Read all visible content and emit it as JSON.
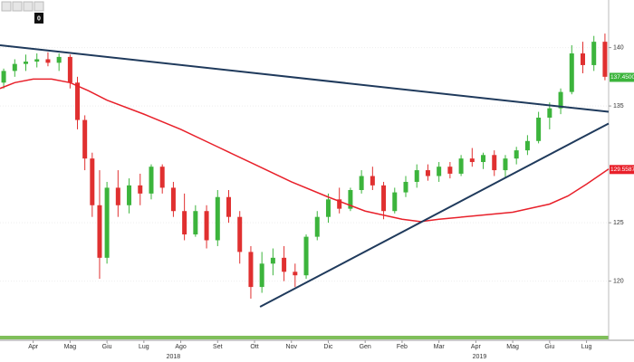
{
  "toolbar": {
    "badge": "0"
  },
  "chart_data": {
    "type": "candlestick",
    "xlim": [
      -0.9,
      15.6
    ],
    "ylim": [
      115.4,
      143.3
    ],
    "xticks": [
      {
        "value": 0,
        "label": "Apr"
      },
      {
        "value": 1,
        "label": "Mag"
      },
      {
        "value": 2,
        "label": "Giu"
      },
      {
        "value": 3,
        "label": "Lug"
      },
      {
        "value": 4,
        "label": "Ago"
      },
      {
        "value": 5,
        "label": "Set"
      },
      {
        "value": 6,
        "label": "Ott"
      },
      {
        "value": 7,
        "label": "Nov"
      },
      {
        "value": 8,
        "label": "Dic"
      },
      {
        "value": 9,
        "label": "Gen"
      },
      {
        "value": 10,
        "label": "Feb"
      },
      {
        "value": 11,
        "label": "Mar"
      },
      {
        "value": 12,
        "label": "Apr"
      },
      {
        "value": 13,
        "label": "Mag"
      },
      {
        "value": 14,
        "label": "Giu"
      },
      {
        "value": 15,
        "label": "Lug"
      }
    ],
    "years": [
      {
        "value": 3.8,
        "label": "2018"
      },
      {
        "value": 12.1,
        "label": "2019"
      }
    ],
    "yticks": [
      120,
      125,
      135,
      140
    ],
    "up_color": "#3cb43c",
    "down_color": "#e03030",
    "x": [
      -0.8,
      -0.5,
      -0.2,
      0.1,
      0.4,
      0.7,
      1.0,
      1.2,
      1.4,
      1.6,
      1.8,
      2.0,
      2.3,
      2.6,
      2.9,
      3.2,
      3.5,
      3.8,
      4.1,
      4.4,
      4.7,
      5.0,
      5.3,
      5.6,
      5.9,
      6.2,
      6.5,
      6.8,
      7.1,
      7.4,
      7.7,
      8.0,
      8.3,
      8.6,
      8.9,
      9.2,
      9.5,
      9.8,
      10.1,
      10.4,
      10.7,
      11.0,
      11.3,
      11.6,
      11.9,
      12.2,
      12.5,
      12.8,
      13.1,
      13.4,
      13.7,
      14.0,
      14.3,
      14.6,
      14.9,
      15.2,
      15.5
    ],
    "open": [
      137,
      138,
      138.6,
      138.8,
      139,
      138.7,
      139.2,
      137,
      133.8,
      130.5,
      126.5,
      122,
      128,
      126.5,
      128.2,
      127.5,
      129.8,
      128,
      126,
      124,
      126,
      123.5,
      127.2,
      125.5,
      122.5,
      119.5,
      121.5,
      122,
      120.8,
      120.5,
      123.8,
      125.5,
      127,
      126.2,
      127.8,
      129,
      128.2,
      126,
      127.6,
      128.5,
      129.5,
      129,
      129.8,
      129.2,
      130.5,
      130.2,
      130.8,
      129.5,
      130.5,
      131.2,
      132,
      134,
      134.8,
      136.2,
      139.5,
      138.5,
      140.5
    ],
    "high": [
      138.2,
      139,
      139.4,
      139.5,
      139.6,
      139.5,
      139.4,
      137.5,
      134.2,
      131,
      129.5,
      128.5,
      129.5,
      128.8,
      129.2,
      130,
      130,
      128.5,
      127.5,
      126.5,
      126.5,
      127.8,
      127.8,
      126,
      123,
      122.5,
      122.8,
      123,
      121.5,
      124,
      126,
      127.5,
      128,
      128,
      129.5,
      129.8,
      128.5,
      128,
      129,
      130,
      130,
      130.2,
      130.2,
      130.8,
      131.4,
      131,
      131.2,
      130.8,
      131.5,
      132.5,
      134.5,
      135.3,
      136.5,
      140.2,
      140.5,
      141,
      141.2
    ],
    "low": [
      136.5,
      137.5,
      138,
      138.3,
      138.4,
      138,
      136.5,
      133,
      129.5,
      125.5,
      120.2,
      121.5,
      125.5,
      125.8,
      126.5,
      127,
      127.5,
      125.5,
      123.5,
      123.8,
      122.8,
      123,
      125,
      121.5,
      118.5,
      119,
      120.5,
      120,
      119.5,
      120.2,
      123.5,
      125,
      125.8,
      126,
      127.5,
      127.8,
      125.3,
      125.8,
      127.2,
      128,
      128.6,
      128.5,
      128.8,
      129,
      129.8,
      129.6,
      129,
      128.8,
      130,
      130.8,
      131.8,
      133,
      134.3,
      136,
      137.8,
      138,
      137.2
    ],
    "close": [
      138,
      138.6,
      138.8,
      139,
      138.7,
      139.2,
      137,
      133.8,
      130.5,
      126.5,
      122,
      128,
      126.5,
      128.2,
      127.5,
      129.8,
      128,
      126,
      124,
      126,
      123.5,
      127.2,
      125.5,
      122.5,
      119.5,
      121.5,
      122,
      120.8,
      120.5,
      123.8,
      125.5,
      127,
      126.2,
      127.8,
      129,
      128.2,
      126,
      127.6,
      128.5,
      129.5,
      129,
      129.8,
      129.2,
      130.5,
      130.2,
      130.8,
      129.5,
      130.5,
      131.2,
      132,
      134,
      134.8,
      136.2,
      139.5,
      138.5,
      140.5,
      137.5
    ],
    "moving_average": {
      "color": "#e8202a",
      "x": [
        -0.9,
        -0.5,
        0,
        0.5,
        1,
        1.5,
        2,
        3,
        4,
        5,
        6,
        7,
        8,
        9,
        10,
        10.5,
        11,
        12,
        13,
        14,
        14.5,
        15,
        15.6
      ],
      "values": [
        136.5,
        137,
        137.3,
        137.3,
        137,
        136.3,
        135.5,
        134.3,
        133,
        131.5,
        130,
        128.5,
        127.2,
        126,
        125.3,
        125.1,
        125.3,
        125.6,
        125.9,
        126.6,
        127.3,
        128.3,
        129.6
      ]
    },
    "trendlines": [
      {
        "color": "#1f3a5c",
        "x": [
          -0.9,
          15.6
        ],
        "y": [
          140.2,
          134.5
        ]
      },
      {
        "color": "#1f3a5c",
        "x": [
          6.15,
          15.6
        ],
        "y": [
          117.8,
          133.5
        ]
      }
    ],
    "price_labels": [
      {
        "value": 137.45,
        "label": "137.4500",
        "color": "#3cb43c"
      },
      {
        "value": 129.5587,
        "label": "129.5587",
        "color": "#e8202a"
      }
    ]
  }
}
